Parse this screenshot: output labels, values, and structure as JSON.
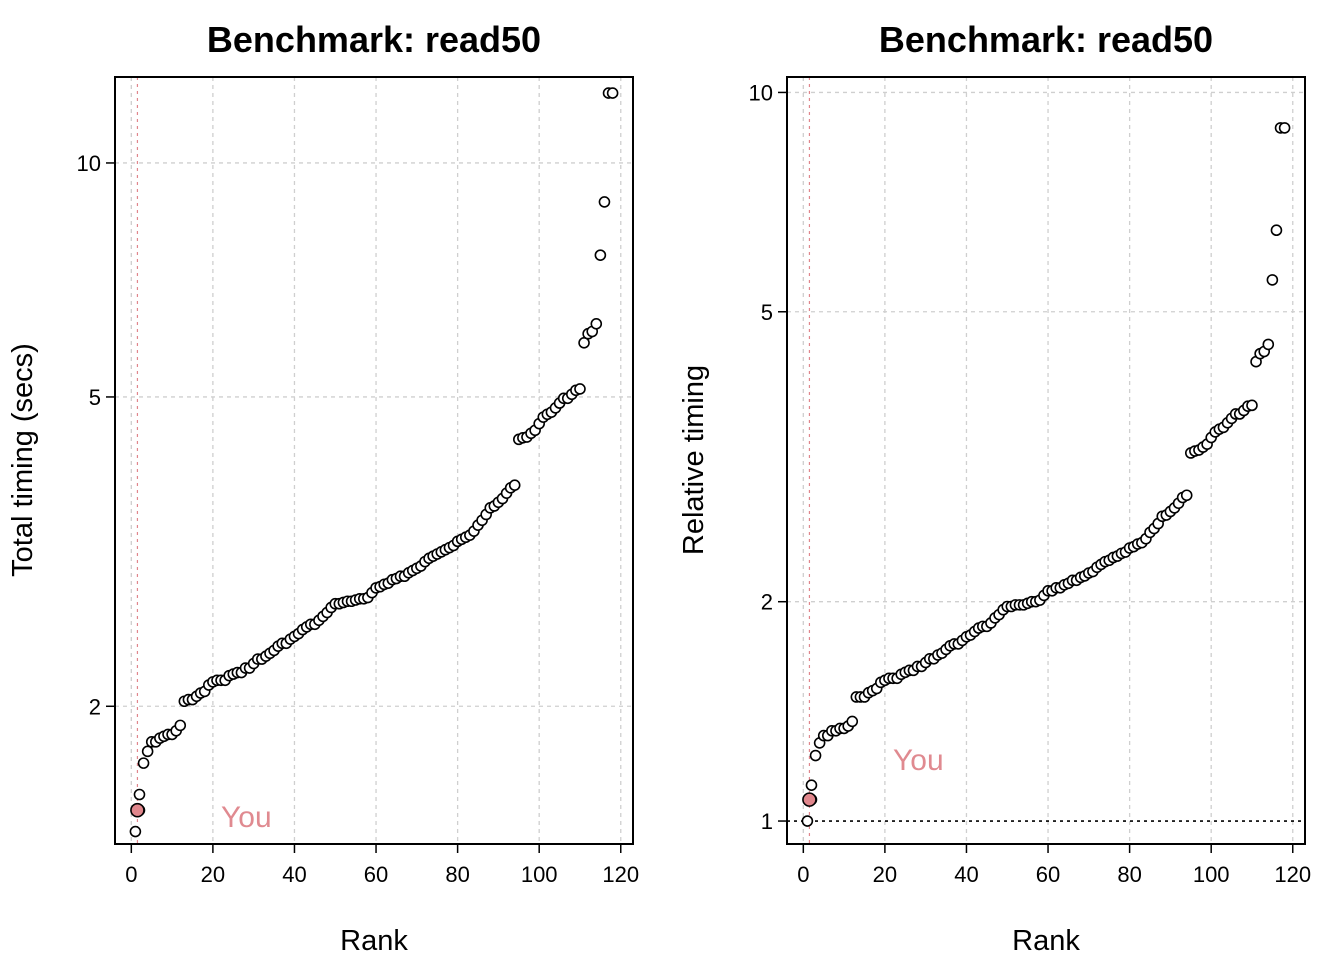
{
  "colors": {
    "you": "#e0868c",
    "grid": "#cfcfcf",
    "point_stroke": "#000000"
  },
  "chart_data": [
    {
      "type": "scatter",
      "title": "Benchmark: read50",
      "xlabel": "Rank",
      "ylabel": "Total timing (secs)",
      "y_scale": "log",
      "xlim": [
        -4,
        123
      ],
      "ylim": [
        1.33,
        12.9
      ],
      "x_ticks": [
        0,
        20,
        40,
        60,
        80,
        100,
        120
      ],
      "y_ticks": [
        2,
        5,
        10
      ],
      "grid": true,
      "you_label": "You",
      "you_rank": 1.5,
      "x": [
        1,
        2,
        2,
        3,
        4,
        5,
        6,
        7,
        8,
        9,
        10,
        11,
        12,
        13,
        14,
        15,
        16,
        17,
        18,
        19,
        20,
        21,
        22,
        23,
        24,
        25,
        26,
        27,
        28,
        29,
        30,
        31,
        32,
        33,
        34,
        35,
        36,
        37,
        38,
        39,
        40,
        41,
        42,
        43,
        44,
        45,
        46,
        47,
        48,
        49,
        50,
        51,
        52,
        53,
        54,
        55,
        56,
        57,
        58,
        59,
        60,
        61,
        62,
        63,
        64,
        65,
        66,
        67,
        68,
        69,
        70,
        71,
        72,
        73,
        74,
        75,
        76,
        77,
        78,
        79,
        80,
        81,
        82,
        83,
        84,
        85,
        86,
        87,
        88,
        89,
        90,
        91,
        92,
        93,
        94,
        95,
        96,
        97,
        98,
        99,
        100,
        101,
        102,
        103,
        104,
        105,
        106,
        107,
        108,
        109,
        110,
        111,
        112,
        113,
        114,
        115,
        116,
        117,
        118
      ],
      "y": [
        1.38,
        1.54,
        1.47,
        1.69,
        1.75,
        1.8,
        1.8,
        1.82,
        1.83,
        1.84,
        1.84,
        1.86,
        1.89,
        2.03,
        2.04,
        2.04,
        2.06,
        2.08,
        2.09,
        2.13,
        2.15,
        2.16,
        2.16,
        2.16,
        2.19,
        2.2,
        2.21,
        2.21,
        2.24,
        2.24,
        2.27,
        2.3,
        2.3,
        2.32,
        2.34,
        2.36,
        2.39,
        2.41,
        2.41,
        2.44,
        2.46,
        2.48,
        2.51,
        2.53,
        2.55,
        2.55,
        2.58,
        2.61,
        2.64,
        2.68,
        2.71,
        2.71,
        2.72,
        2.73,
        2.73,
        2.74,
        2.75,
        2.75,
        2.76,
        2.8,
        2.84,
        2.85,
        2.87,
        2.88,
        2.91,
        2.92,
        2.94,
        2.94,
        2.97,
        2.99,
        3.01,
        3.03,
        3.07,
        3.1,
        3.12,
        3.14,
        3.16,
        3.18,
        3.2,
        3.22,
        3.26,
        3.28,
        3.3,
        3.32,
        3.36,
        3.42,
        3.47,
        3.53,
        3.6,
        3.62,
        3.66,
        3.7,
        3.76,
        3.82,
        3.85,
        4.41,
        4.43,
        4.44,
        4.49,
        4.53,
        4.62,
        4.71,
        4.75,
        4.78,
        4.84,
        4.91,
        4.98,
        4.98,
        5.04,
        5.1,
        5.12,
        5.87,
        6.03,
        6.07,
        6.21,
        7.61,
        8.91,
        12.3,
        12.3
      ],
      "you_x": 1.5,
      "you_y": 1.47
    },
    {
      "type": "scatter",
      "title": "Benchmark: read50",
      "xlabel": "Rank",
      "ylabel": "Relative timing",
      "y_scale": "log",
      "xlim": [
        -4,
        123
      ],
      "ylim": [
        0.93,
        10.5
      ],
      "x_ticks": [
        0,
        20,
        40,
        60,
        80,
        100,
        120
      ],
      "y_ticks": [
        1,
        2,
        5,
        10
      ],
      "grid": true,
      "reference_line_y": 1,
      "you_label": "You",
      "you_rank": 1.5,
      "x": [
        1,
        2,
        2,
        3,
        4,
        5,
        6,
        7,
        8,
        9,
        10,
        11,
        12,
        13,
        14,
        15,
        16,
        17,
        18,
        19,
        20,
        21,
        22,
        23,
        24,
        25,
        26,
        27,
        28,
        29,
        30,
        31,
        32,
        33,
        34,
        35,
        36,
        37,
        38,
        39,
        40,
        41,
        42,
        43,
        44,
        45,
        46,
        47,
        48,
        49,
        50,
        51,
        52,
        53,
        54,
        55,
        56,
        57,
        58,
        59,
        60,
        61,
        62,
        63,
        64,
        65,
        66,
        67,
        68,
        69,
        70,
        71,
        72,
        73,
        74,
        75,
        76,
        77,
        78,
        79,
        80,
        81,
        82,
        83,
        84,
        85,
        86,
        87,
        88,
        89,
        90,
        91,
        92,
        93,
        94,
        95,
        96,
        97,
        98,
        99,
        100,
        101,
        102,
        103,
        104,
        105,
        106,
        107,
        108,
        109,
        110,
        111,
        112,
        113,
        114,
        115,
        116,
        117,
        118
      ],
      "y": [
        1.0,
        1.12,
        1.07,
        1.23,
        1.28,
        1.31,
        1.31,
        1.33,
        1.33,
        1.34,
        1.34,
        1.35,
        1.37,
        1.48,
        1.48,
        1.48,
        1.5,
        1.51,
        1.52,
        1.55,
        1.56,
        1.57,
        1.57,
        1.57,
        1.59,
        1.6,
        1.61,
        1.61,
        1.63,
        1.63,
        1.65,
        1.67,
        1.67,
        1.69,
        1.7,
        1.72,
        1.74,
        1.75,
        1.75,
        1.77,
        1.79,
        1.8,
        1.82,
        1.84,
        1.85,
        1.85,
        1.87,
        1.9,
        1.92,
        1.95,
        1.97,
        1.97,
        1.98,
        1.98,
        1.98,
        1.99,
        2.0,
        2.0,
        2.01,
        2.04,
        2.07,
        2.07,
        2.09,
        2.09,
        2.11,
        2.12,
        2.14,
        2.14,
        2.16,
        2.17,
        2.19,
        2.2,
        2.23,
        2.25,
        2.27,
        2.28,
        2.3,
        2.31,
        2.33,
        2.34,
        2.37,
        2.38,
        2.4,
        2.41,
        2.44,
        2.49,
        2.52,
        2.56,
        2.62,
        2.63,
        2.66,
        2.69,
        2.73,
        2.78,
        2.8,
        3.2,
        3.22,
        3.23,
        3.26,
        3.29,
        3.36,
        3.42,
        3.45,
        3.47,
        3.52,
        3.57,
        3.62,
        3.62,
        3.66,
        3.71,
        3.72,
        4.27,
        4.38,
        4.41,
        4.51,
        5.53,
        6.47,
        8.94,
        8.94
      ],
      "you_x": 1.5,
      "you_y": 1.07
    }
  ]
}
